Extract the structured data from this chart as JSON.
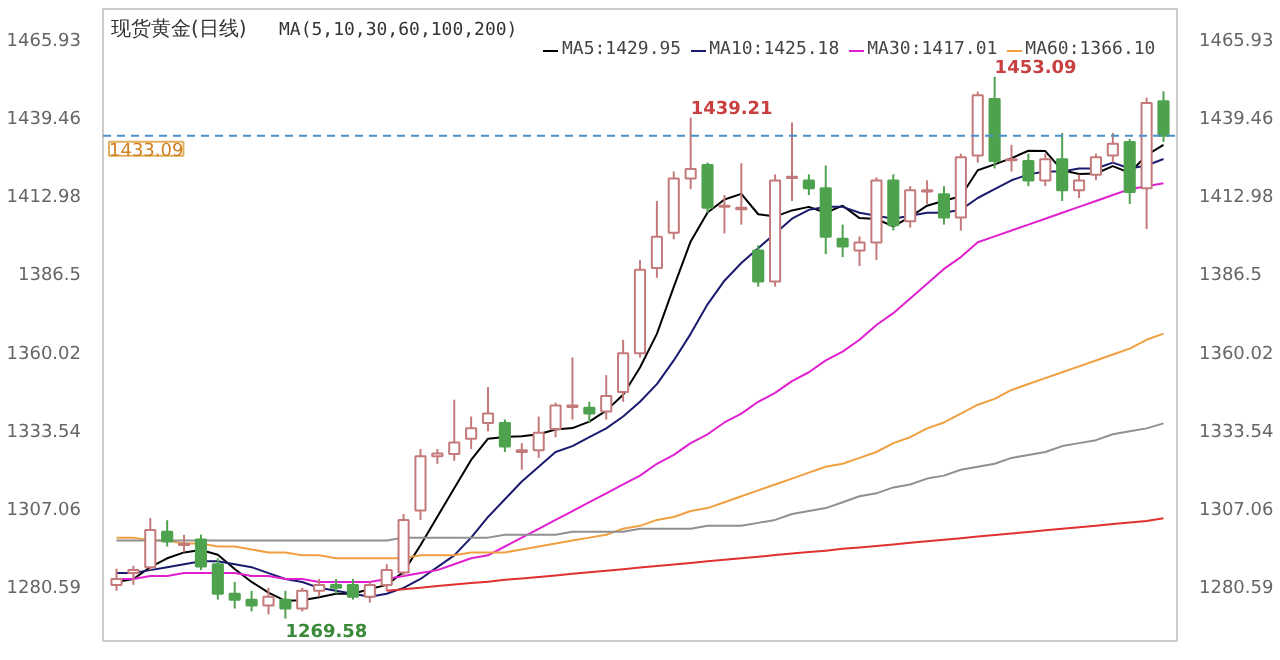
{
  "chart_data": {
    "type": "candlestick",
    "title": "现货黄金(日线)",
    "subtitle": "MA(5,10,30,60,100,200)",
    "categories": [
      null,
      null,
      null,
      null,
      null,
      null,
      null,
      null,
      null,
      null,
      null,
      null,
      null,
      null,
      null,
      null,
      null,
      null,
      null,
      null,
      null,
      null,
      null,
      null,
      null,
      null,
      null,
      null,
      null,
      null,
      null,
      null,
      null,
      null,
      null,
      null,
      null,
      null,
      null,
      null,
      null,
      null,
      null,
      null,
      null,
      null,
      null,
      null,
      null,
      null,
      null,
      null,
      null,
      null,
      null,
      null,
      null,
      null,
      null,
      null,
      null,
      null,
      null
    ],
    "ohlc": [
      [
        1281,
        1286.5,
        1279,
        1283
      ],
      [
        1285,
        1287.5,
        1281,
        1286
      ],
      [
        1287,
        1303.6,
        1286,
        1299.6
      ],
      [
        1299,
        1302.9,
        1294,
        1295.7
      ],
      [
        1294.5,
        1298,
        1292,
        1294.9
      ],
      [
        1296.4,
        1298,
        1286,
        1287.2
      ],
      [
        1288,
        1290,
        1276,
        1278
      ],
      [
        1278,
        1282,
        1273,
        1276
      ],
      [
        1276,
        1279,
        1272,
        1274
      ],
      [
        1274,
        1280,
        1271,
        1277
      ],
      [
        1276,
        1279,
        1269.58,
        1273
      ],
      [
        1273,
        1280,
        1272,
        1279
      ],
      [
        1279,
        1283,
        1277,
        1281
      ],
      [
        1281,
        1283,
        1278,
        1280
      ],
      [
        1281,
        1283,
        1276,
        1277
      ],
      [
        1277,
        1282,
        1275,
        1281
      ],
      [
        1281,
        1288,
        1279,
        1286
      ],
      [
        1285.2,
        1305,
        1284,
        1303
      ],
      [
        1306.2,
        1327,
        1303,
        1324.6
      ],
      [
        1324.6,
        1327,
        1322,
        1325.5
      ],
      [
        1325.3,
        1343.7,
        1323,
        1329.2
      ],
      [
        1330.5,
        1338,
        1327,
        1334
      ],
      [
        1335.8,
        1348,
        1333,
        1339
      ],
      [
        1335.8,
        1337,
        1326,
        1327.9
      ],
      [
        1326,
        1329,
        1320,
        1326.6
      ],
      [
        1326.6,
        1338,
        1324,
        1332.5
      ],
      [
        1333.8,
        1342.7,
        1331,
        1341.7
      ],
      [
        1341.2,
        1358,
        1337,
        1341.7
      ],
      [
        1341,
        1343,
        1336,
        1339
      ],
      [
        1339.7,
        1352,
        1337,
        1345
      ],
      [
        1346.3,
        1364,
        1343,
        1359.4
      ],
      [
        1359.4,
        1391,
        1358,
        1387.7
      ],
      [
        1388.3,
        1411,
        1385,
        1398.9
      ],
      [
        1400.2,
        1421,
        1398,
        1418.6
      ],
      [
        1418.6,
        1439.21,
        1415,
        1421.8
      ],
      [
        1423.2,
        1424,
        1407,
        1408.7
      ],
      [
        1409,
        1413,
        1400,
        1409.4
      ],
      [
        1408.2,
        1423.8,
        1403,
        1408.7
      ],
      [
        1394.2,
        1396,
        1382,
        1383.7
      ],
      [
        1383.7,
        1420,
        1382,
        1417.9
      ],
      [
        1418.8,
        1437.6,
        1411,
        1419.2
      ],
      [
        1417.9,
        1420,
        1413,
        1415.3
      ],
      [
        1415.3,
        1423,
        1393,
        1398.9
      ],
      [
        1398.2,
        1403,
        1392,
        1395.6
      ],
      [
        1394.2,
        1399,
        1389,
        1396.9
      ],
      [
        1396.9,
        1419,
        1391,
        1417.9
      ],
      [
        1417.9,
        1420,
        1401,
        1402.8
      ],
      [
        1404.1,
        1416,
        1402,
        1414.6
      ],
      [
        1414.2,
        1418,
        1410,
        1414.6
      ],
      [
        1413.3,
        1416,
        1403,
        1405.4
      ],
      [
        1405.4,
        1427,
        1401,
        1425.8
      ],
      [
        1426.4,
        1448,
        1424,
        1446.8
      ],
      [
        1445.5,
        1453.09,
        1422,
        1424.5
      ],
      [
        1424.8,
        1430,
        1421,
        1425.1
      ],
      [
        1424.5,
        1427,
        1416,
        1417.9
      ],
      [
        1417.9,
        1427,
        1416,
        1425.1
      ],
      [
        1425.1,
        1434,
        1411,
        1414.6
      ],
      [
        1414.6,
        1420,
        1412,
        1417.9
      ],
      [
        1419.9,
        1427,
        1418,
        1425.8
      ],
      [
        1426.4,
        1434,
        1424,
        1430.4
      ],
      [
        1431,
        1432,
        1410,
        1414
      ],
      [
        1415.3,
        1446,
        1401.5,
        1444.2
      ],
      [
        1444.8,
        1448.1,
        1431,
        1433.09
      ]
    ],
    "series": [
      {
        "type": "line",
        "name": "MA5:1429.95",
        "color": "#000000",
        "values": [
          1282,
          1283,
          1287,
          1290,
          1292,
          1292.8,
          1291.2,
          1286.4,
          1282,
          1278.4,
          1275.6,
          1275.8,
          1276.8,
          1278,
          1278,
          1279.6,
          1281,
          1285.4,
          1294.4,
          1304.1,
          1313.7,
          1323.3,
          1330.5,
          1331.1,
          1331.3,
          1332,
          1333.6,
          1334.1,
          1336.3,
          1340,
          1345.4,
          1354.6,
          1366,
          1381.9,
          1397.3,
          1407.1,
          1411.5,
          1413.4,
          1406.5,
          1405.7,
          1407.8,
          1409,
          1407,
          1409.4,
          1405.2,
          1404.9,
          1402.4,
          1405.6,
          1409.4,
          1411.1,
          1412.6,
          1421.4,
          1423.4,
          1425.5,
          1428,
          1427.9,
          1421.4,
          1420.1,
          1420.3,
          1422.8,
          1420.5,
          1426.5,
          1430
        ]
      },
      {
        "type": "line",
        "name": "MA10:1425.18",
        "color": "#1a1a6e",
        "values": [
          1285,
          1285,
          1286,
          1287,
          1288,
          1289,
          1289,
          1288,
          1287,
          1285,
          1283,
          1282,
          1280,
          1279,
          1278,
          1277,
          1278,
          1280,
          1283,
          1287,
          1291,
          1297,
          1304,
          1310,
          1316,
          1321,
          1326,
          1328,
          1331,
          1334,
          1338,
          1343,
          1349,
          1357,
          1366,
          1376,
          1384,
          1390,
          1395,
          1400,
          1405,
          1408,
          1409,
          1409,
          1407,
          1406,
          1405,
          1406,
          1407,
          1407,
          1408,
          1412,
          1415,
          1418,
          1420,
          1421,
          1421,
          1422,
          1422,
          1424,
          1422,
          1423,
          1425.2
        ]
      },
      {
        "type": "line",
        "name": "MA30:1417.01",
        "color": "#e020d0",
        "values": [
          1283,
          1283,
          1284,
          1284,
          1285,
          1285,
          1285,
          1285,
          1284,
          1284,
          1283,
          1283,
          1282,
          1282,
          1282,
          1282,
          1283,
          1284,
          1285,
          1286,
          1288,
          1290,
          1291,
          1294,
          1297,
          1300,
          1303,
          1306,
          1309,
          1312,
          1315,
          1318,
          1322,
          1325,
          1329,
          1332,
          1336,
          1339,
          1343,
          1346,
          1350,
          1353,
          1357,
          1360,
          1364,
          1369,
          1373,
          1378,
          1383,
          1388,
          1392,
          1397,
          1399,
          1401,
          1403,
          1405,
          1407,
          1409,
          1411,
          1413,
          1415,
          1416,
          1417
        ]
      },
      {
        "type": "line",
        "name": "MA60:1366.10",
        "color": "#f0a040",
        "values": [
          1297,
          1297,
          1296,
          1296,
          1295,
          1295,
          1294,
          1294,
          1293,
          1292,
          1292,
          1291,
          1291,
          1290,
          1290,
          1290,
          1290,
          1290,
          1291,
          1291,
          1291,
          1292,
          1292,
          1292,
          1293,
          1294,
          1295,
          1296,
          1297,
          1298,
          1300,
          1301,
          1303,
          1304,
          1306,
          1307,
          1309,
          1311,
          1313,
          1315,
          1317,
          1319,
          1321,
          1322,
          1324,
          1326,
          1329,
          1331,
          1334,
          1336,
          1339,
          1342,
          1344,
          1347,
          1349,
          1351,
          1353,
          1355,
          1357,
          1359,
          1361,
          1364,
          1366.1
        ]
      },
      {
        "type": "line",
        "color": "#909090",
        "values": [
          1296,
          1296,
          1296,
          1296,
          1296,
          1296,
          1296,
          1296,
          1296,
          1296,
          1296,
          1296,
          1296,
          1296,
          1296,
          1296,
          1296,
          1297,
          1297,
          1297,
          1297,
          1297,
          1297,
          1298,
          1298,
          1298,
          1298,
          1299,
          1299,
          1299,
          1299,
          1300,
          1300,
          1300,
          1300,
          1301,
          1301,
          1301,
          1302,
          1303,
          1305,
          1306,
          1307,
          1309,
          1311,
          1312,
          1314,
          1315,
          1317,
          1318,
          1320,
          1321,
          1322,
          1324,
          1325,
          1326,
          1328,
          1329,
          1330,
          1332,
          1333,
          1334,
          1335.7
        ]
      },
      {
        "type": "line",
        "color": "#e03030",
        "values": [
          null,
          null,
          null,
          null,
          null,
          null,
          null,
          null,
          null,
          null,
          null,
          null,
          null,
          null,
          null,
          null,
          1279,
          1279.5,
          1280,
          1280.6,
          1281.1,
          1281.6,
          1282.1,
          1282.7,
          1283.2,
          1283.7,
          1284.2,
          1284.8,
          1285.3,
          1285.8,
          1286.3,
          1286.9,
          1287.4,
          1287.9,
          1288.4,
          1289,
          1289.5,
          1290,
          1290.5,
          1291.1,
          1291.6,
          1292.1,
          1292.6,
          1293.2,
          1293.7,
          1294.2,
          1294.7,
          1295.3,
          1295.8,
          1296.3,
          1296.8,
          1297.4,
          1297.9,
          1298.4,
          1298.9,
          1299.5,
          1300,
          1300.5,
          1301,
          1301.6,
          1302.1,
          1302.6,
          1303.6
        ]
      }
    ],
    "ylim": [
      1262,
      1476
    ],
    "yticks": [
      1280.59,
      1307.06,
      1333.54,
      1360.02,
      1386.5,
      1412.98,
      1439.46,
      1465.93
    ],
    "y2lim": [
      1262,
      1476
    ],
    "y2ticks": [
      1280.59,
      1307.06,
      1333.54,
      1360.02,
      1386.5,
      1412.98,
      1439.46,
      1465.93
    ],
    "ref_lines": [
      {
        "axis": "y",
        "value": 1433.09,
        "label": "1433.09",
        "color": "#4a90c8",
        "line_style": "dashed"
      }
    ],
    "annotations": [
      "1439.21",
      "1453.09",
      "1269.58"
    ],
    "legend": "top"
  }
}
